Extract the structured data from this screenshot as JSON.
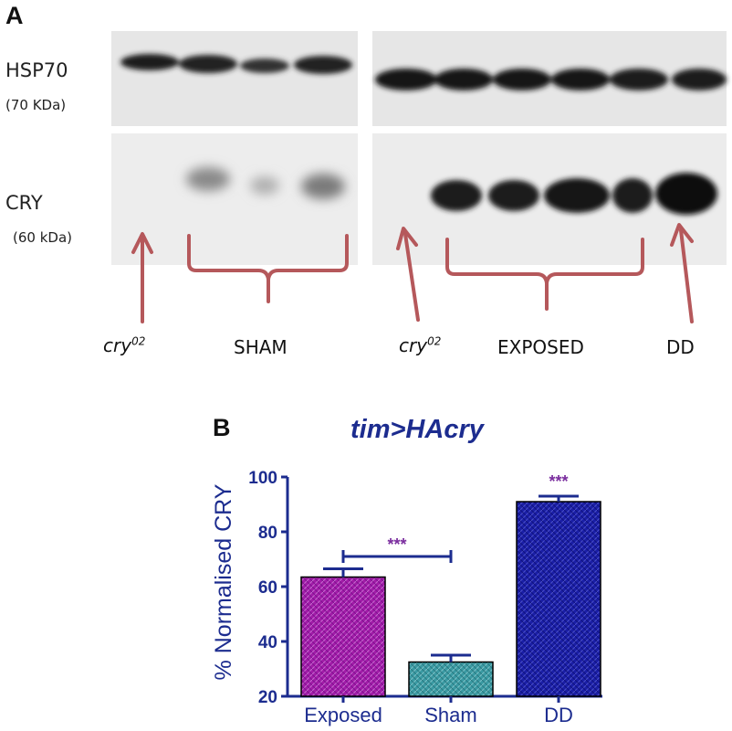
{
  "panel_a": {
    "letter": "A",
    "hsp70_label": "HSP70",
    "hsp70_kda": "(70 KDa)",
    "cry_label": "CRY",
    "cry_kda": "(60 kDa)",
    "lanes": {
      "cry02_left": "cry",
      "cry02_left_sup": "02",
      "sham": "SHAM",
      "cry02_right": "cry",
      "cry02_right_sup": "02",
      "exposed": "EXPOSED",
      "dd": "DD"
    },
    "annotation_color": "#b5585b"
  },
  "panel_b": {
    "letter": "B",
    "chart_title": "tim>HAcry"
  },
  "chart_data": {
    "type": "bar",
    "title": "tim>HAcry",
    "ylabel": "% Normalised CRY",
    "xlabel": "",
    "categories": [
      "Exposed",
      "Sham",
      "DD"
    ],
    "values": [
      63.5,
      32.5,
      91
    ],
    "errors": [
      3,
      2.5,
      2
    ],
    "ylim": [
      20,
      100
    ],
    "yticks": [
      20,
      40,
      60,
      80,
      100
    ],
    "bar_colors": [
      "#a21ba8",
      "#3a9aa3",
      "#1a1ea6"
    ],
    "significance": [
      {
        "type": "bracket",
        "from": "Exposed",
        "to": "Sham",
        "label": "***"
      },
      {
        "type": "above",
        "at": "DD",
        "label": "***"
      }
    ],
    "axis_color": "#1c2c8f",
    "grid": false,
    "legend": "none"
  }
}
